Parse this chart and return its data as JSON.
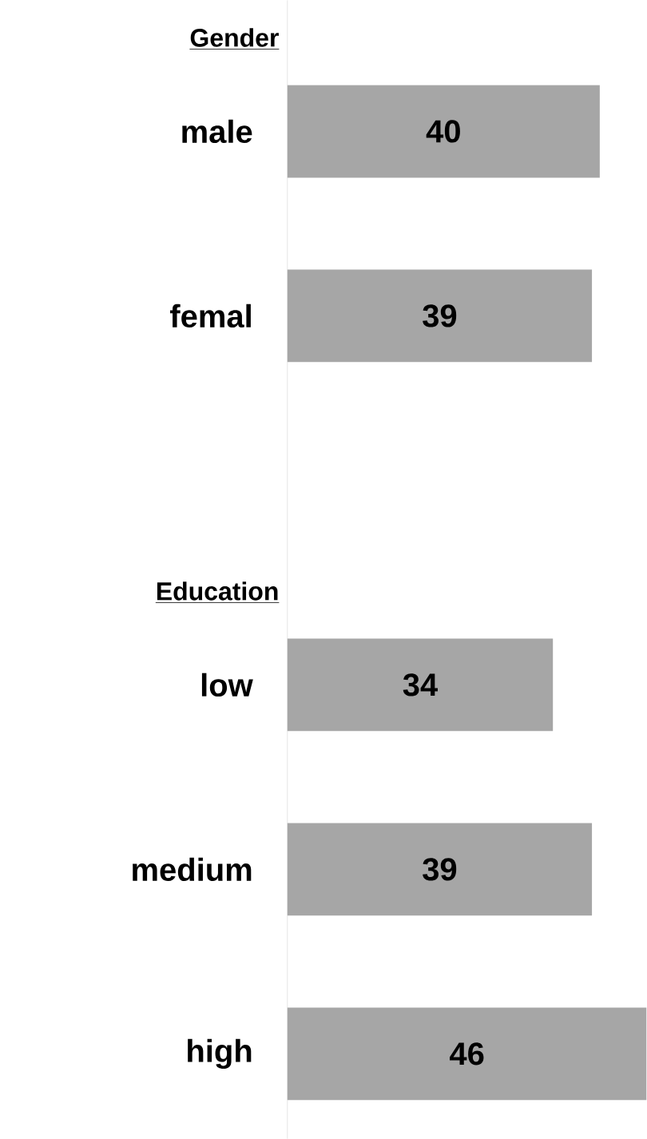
{
  "chart_data": {
    "type": "bar",
    "orientation": "horizontal",
    "categories": [
      "male",
      "femal",
      null,
      "low",
      "medium",
      "high"
    ],
    "values": [
      40,
      39,
      null,
      34,
      39,
      46
    ],
    "color": "#a6a6a6",
    "data_labels": true,
    "annotations": [
      "Gender",
      "Education"
    ]
  }
}
